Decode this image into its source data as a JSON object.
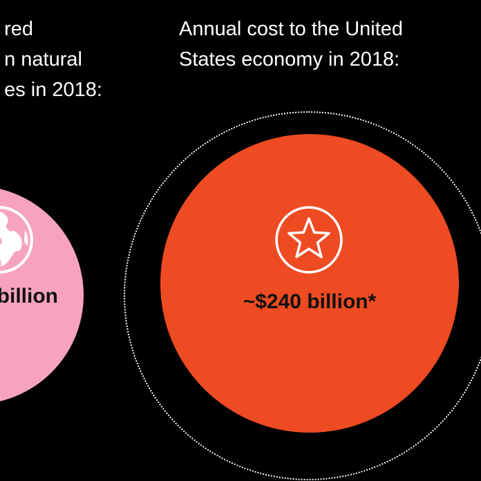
{
  "left_panel": {
    "caption_lines": [
      "red",
      "n natural",
      "es in 2018:"
    ],
    "amount": "billion",
    "icon": "globe-icon",
    "color": "#f7a3c0"
  },
  "right_panel": {
    "caption_lines": [
      "Annual cost to the United",
      "States economy in 2018:"
    ],
    "amount": "~$240 billion*",
    "icon": "star-icon",
    "color": "#ee4b23"
  },
  "background_color": "#000000"
}
